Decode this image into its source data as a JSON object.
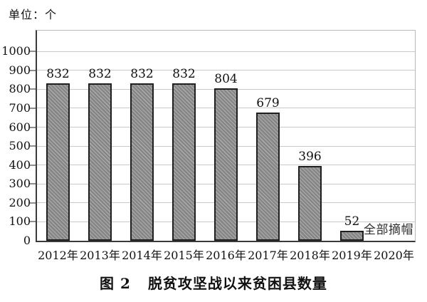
{
  "unit_label": "单位：个",
  "caption": {
    "figure_label": "图 2",
    "text": "脱贫攻坚战以来贫困县数量"
  },
  "chart_data": {
    "type": "bar",
    "title": "图 2 脱贫攻坚战以来贫困县数量",
    "unit": "个",
    "categories": [
      "2012年",
      "2013年",
      "2014年",
      "2015年",
      "2016年",
      "2017年",
      "2018年",
      "2019年",
      "2020年"
    ],
    "values": [
      832,
      832,
      832,
      832,
      804,
      679,
      396,
      52,
      null
    ],
    "annotations": [
      {
        "category": "2020年",
        "text": "全部摘帽"
      }
    ],
    "yticks": [
      0,
      100,
      200,
      300,
      400,
      500,
      600,
      700,
      800,
      900,
      1000
    ],
    "ylim": [
      0,
      1110
    ],
    "grid": true,
    "legend": null,
    "xlabel": "",
    "ylabel": "单位：个",
    "colors": {
      "bar_fill": "#868686",
      "bar_hatch": "#adadad",
      "bar_border": "#1f1f1f",
      "gridline": "#c9c9c9",
      "axis": "#3a3a3a",
      "frame": "#b9b9b9",
      "tick": "#8f8f8f",
      "text": "#111111"
    }
  }
}
